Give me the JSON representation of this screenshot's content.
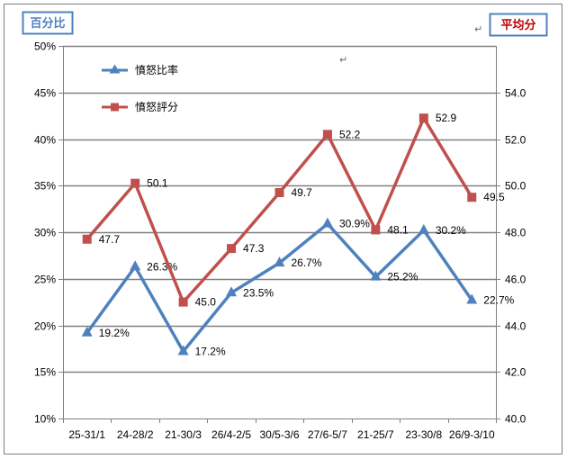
{
  "chart_data": {
    "type": "line",
    "categories": [
      "25-31/1",
      "24-28/2",
      "21-30/3",
      "26/4-2/5",
      "30/5-3/6",
      "27/6-5/7",
      "21-25/7",
      "23-30/8",
      "26/9-3/10"
    ],
    "left_axis": {
      "title": "百分比",
      "min": 10,
      "max": 50,
      "step": 5,
      "tick_labels": [
        "10%",
        "15%",
        "20%",
        "25%",
        "30%",
        "35%",
        "40%",
        "45%",
        "50%"
      ]
    },
    "right_axis": {
      "title": "平均分",
      "min": 40,
      "max": 56,
      "step": 2,
      "tick_labels": [
        "40.0",
        "42.0",
        "44.0",
        "46.0",
        "48.0",
        "50.0",
        "52.0",
        "54.0"
      ]
    },
    "series": [
      {
        "name": "憤怒比率",
        "axis": "left",
        "color": "#4f81bd",
        "marker": "triangle",
        "values": [
          19.2,
          26.3,
          17.2,
          23.5,
          26.7,
          30.9,
          25.2,
          30.2,
          22.7
        ],
        "labels": [
          "19.2%",
          "26.3%",
          "17.2%",
          "23.5%",
          "26.7%",
          "30.9%",
          "25.2%",
          "30.2%",
          "22.7%"
        ]
      },
      {
        "name": "憤怒評分",
        "axis": "right",
        "color": "#c0504d",
        "marker": "square",
        "values": [
          47.7,
          50.1,
          45.0,
          47.3,
          49.7,
          52.2,
          48.1,
          52.9,
          49.5
        ],
        "labels": [
          "47.7",
          "50.1",
          "45.0",
          "47.3",
          "49.7",
          "52.2",
          "48.1",
          "52.9",
          "49.5"
        ]
      }
    ],
    "grid": true,
    "legend_position": "top-left",
    "edit_marks": [
      "↵",
      "↵"
    ]
  }
}
